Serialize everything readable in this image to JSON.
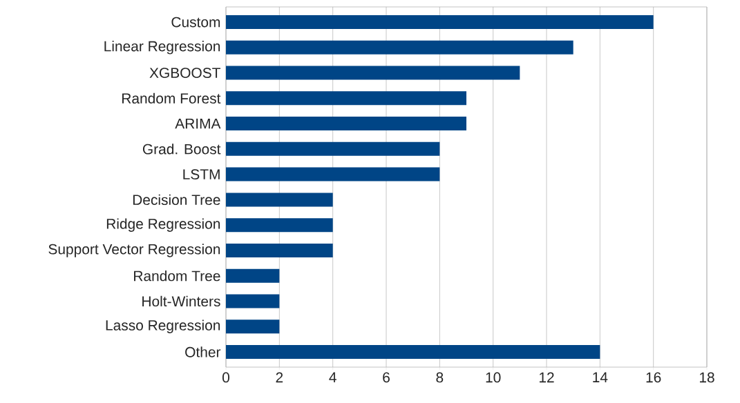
{
  "chart_data": {
    "type": "bar",
    "orientation": "horizontal",
    "categories": [
      "Custom",
      "Linear Regression",
      "XGBOOST",
      "Random Forest",
      "ARIMA",
      "Grad. Boost",
      "LSTM",
      "Decision Tree",
      "Ridge Regression",
      "Support Vector Regression",
      "Random Tree",
      "Holt-Winters",
      "Lasso Regression",
      "Other"
    ],
    "values": [
      16,
      13,
      11,
      9,
      9,
      8,
      8,
      4,
      4,
      4,
      2,
      2,
      2,
      14
    ],
    "color": "#004586",
    "xlim": [
      0,
      18
    ],
    "xticks": [
      0,
      2,
      4,
      6,
      8,
      10,
      12,
      14,
      16,
      18
    ],
    "grid": "x"
  }
}
